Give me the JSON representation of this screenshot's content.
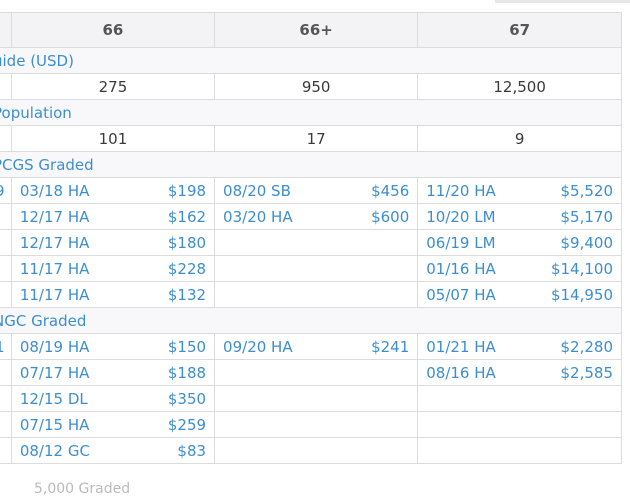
{
  "headers": [
    "66",
    "66+",
    "67"
  ],
  "price_guide": {
    "label": "uide (USD)",
    "values": [
      "275",
      "950",
      "12,500"
    ]
  },
  "population": {
    "label": "Population",
    "values": [
      "101",
      "17",
      "9"
    ]
  },
  "pcgs": {
    "label": "PCGS Graded",
    "stub_marker": "9",
    "rows": [
      [
        {
          "date": "03/18 HA",
          "price": "$198"
        },
        {
          "date": "08/20 SB",
          "price": "$456"
        },
        {
          "date": "11/20 HA",
          "price": "$5,520"
        }
      ],
      [
        {
          "date": "12/17 HA",
          "price": "$162"
        },
        {
          "date": "03/20 HA",
          "price": "$600"
        },
        {
          "date": "10/20 LM",
          "price": "$5,170"
        }
      ],
      [
        {
          "date": "12/17 HA",
          "price": "$180"
        },
        {
          "date": "",
          "price": ""
        },
        {
          "date": "06/19 LM",
          "price": "$9,400"
        }
      ],
      [
        {
          "date": "11/17 HA",
          "price": "$228"
        },
        {
          "date": "",
          "price": ""
        },
        {
          "date": "01/16 HA",
          "price": "$14,100"
        }
      ],
      [
        {
          "date": "11/17 HA",
          "price": "$132"
        },
        {
          "date": "",
          "price": ""
        },
        {
          "date": "05/07 HA",
          "price": "$14,950"
        }
      ]
    ]
  },
  "ngc": {
    "label": "NGC Graded",
    "stub_marker": "1",
    "rows": [
      [
        {
          "date": "08/19 HA",
          "price": "$150"
        },
        {
          "date": "09/20 HA",
          "price": "$241"
        },
        {
          "date": "01/21 HA",
          "price": "$2,280"
        }
      ],
      [
        {
          "date": "07/17 HA",
          "price": "$188"
        },
        {
          "date": "",
          "price": ""
        },
        {
          "date": "08/16 HA",
          "price": "$2,585"
        }
      ],
      [
        {
          "date": "12/15 DL",
          "price": "$350"
        },
        {
          "date": "",
          "price": ""
        },
        {
          "date": "",
          "price": ""
        }
      ],
      [
        {
          "date": "07/15 HA",
          "price": "$259"
        },
        {
          "date": "",
          "price": ""
        },
        {
          "date": "",
          "price": ""
        }
      ],
      [
        {
          "date": "08/12 GC",
          "price": "$83"
        },
        {
          "date": "",
          "price": ""
        },
        {
          "date": "",
          "price": ""
        }
      ]
    ]
  },
  "cutoff_text": "5,000 Graded"
}
